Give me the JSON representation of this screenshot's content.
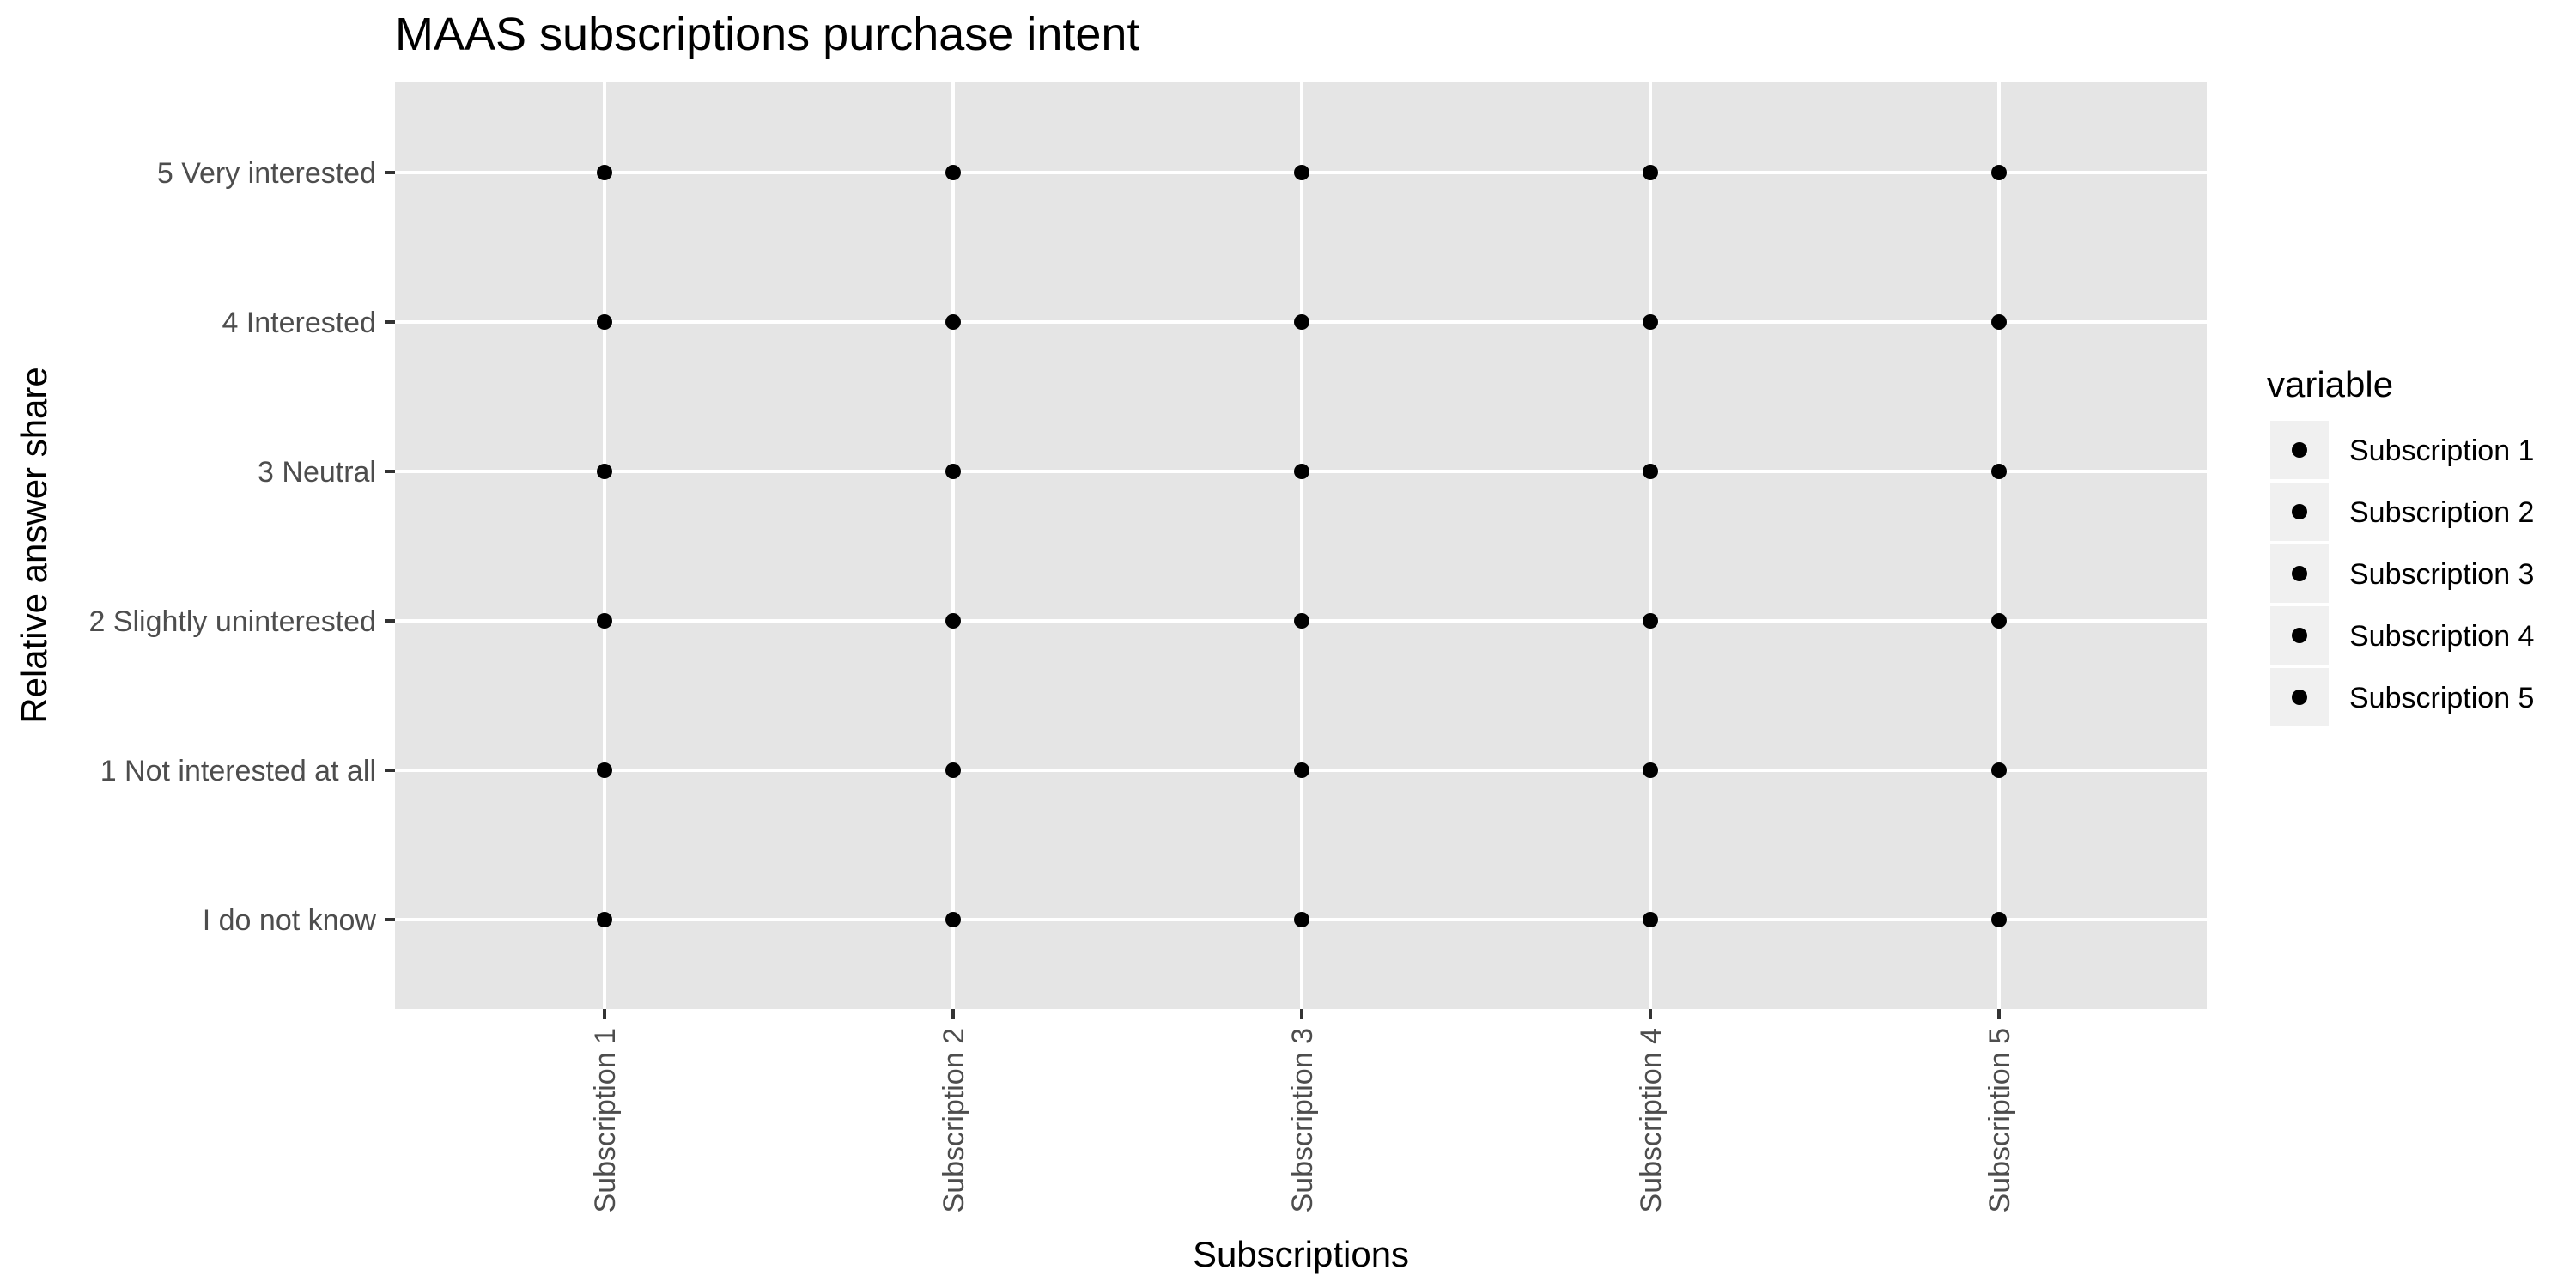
{
  "chart_data": {
    "type": "scatter",
    "title": "MAAS subscriptions purchase intent",
    "xlabel": "Subscriptions",
    "ylabel": "Relative answer share",
    "categories": [
      "Subscription 1",
      "Subscription 2",
      "Subscription 3",
      "Subscription 4",
      "Subscription 5"
    ],
    "y_categories": [
      "I do not know",
      "1 Not interested at all",
      "2 Slightly uninterested",
      "3 Neutral",
      "4 Interested",
      "5 Very interested"
    ],
    "series": [
      {
        "name": "Subscription 1",
        "x": "Subscription 1",
        "values": [
          "I do not know",
          "1 Not interested at all",
          "2 Slightly uninterested",
          "3 Neutral",
          "4 Interested",
          "5 Very interested"
        ]
      },
      {
        "name": "Subscription 2",
        "x": "Subscription 2",
        "values": [
          "I do not know",
          "1 Not interested at all",
          "2 Slightly uninterested",
          "3 Neutral",
          "4 Interested",
          "5 Very interested"
        ]
      },
      {
        "name": "Subscription 3",
        "x": "Subscription 3",
        "values": [
          "I do not know",
          "1 Not interested at all",
          "2 Slightly uninterested",
          "3 Neutral",
          "4 Interested",
          "5 Very interested"
        ]
      },
      {
        "name": "Subscription 4",
        "x": "Subscription 4",
        "values": [
          "I do not know",
          "1 Not interested at all",
          "2 Slightly uninterested",
          "3 Neutral",
          "4 Interested",
          "5 Very interested"
        ]
      },
      {
        "name": "Subscription 5",
        "x": "Subscription 5",
        "values": [
          "I do not know",
          "1 Not interested at all",
          "2 Slightly uninterested",
          "3 Neutral",
          "4 Interested",
          "5 Very interested"
        ]
      }
    ],
    "legend": {
      "title": "variable",
      "placement": "right",
      "entries": [
        "Subscription 1",
        "Subscription 2",
        "Subscription 3",
        "Subscription 4",
        "Subscription 5"
      ]
    },
    "grid": true,
    "colors": {
      "panel": "#e5e5e5",
      "grid": "#ffffff",
      "point": "#000000",
      "tick": "#333333",
      "tick_label": "#4d4d4d",
      "legend_key": "#f0f0f0"
    }
  }
}
